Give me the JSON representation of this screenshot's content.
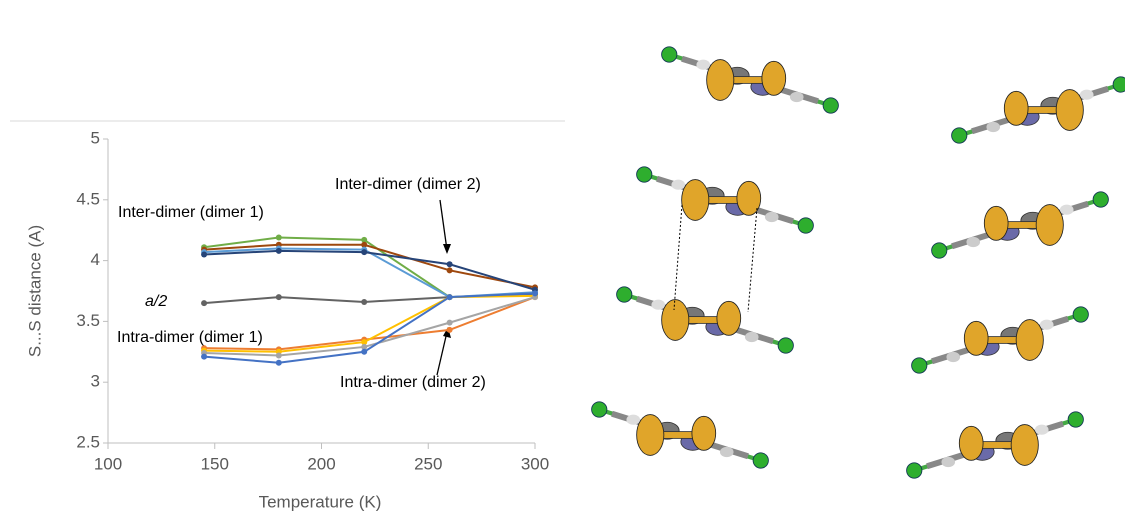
{
  "chart_data": {
    "type": "line",
    "x_label": "Temperature (K)",
    "y_label": "S...S distance (A)",
    "x": [
      145,
      180,
      220,
      260,
      300
    ],
    "series": [
      {
        "color": "#70ad47",
        "values": [
          4.11,
          4.19,
          4.17,
          3.7,
          3.73
        ]
      },
      {
        "color": "#9e480e",
        "values": [
          4.09,
          4.13,
          4.13,
          3.92,
          3.78
        ]
      },
      {
        "color": "#5b9bd5",
        "values": [
          4.07,
          4.1,
          4.09,
          3.7,
          3.74
        ]
      },
      {
        "color": "#264478",
        "values": [
          4.05,
          4.08,
          4.07,
          3.97,
          3.76
        ]
      },
      {
        "color": "#636363",
        "values": [
          3.65,
          3.7,
          3.66,
          3.7,
          3.72
        ]
      },
      {
        "color": "#ed7d31",
        "values": [
          3.28,
          3.27,
          3.35,
          3.43,
          3.7
        ]
      },
      {
        "color": "#ffc000",
        "values": [
          3.26,
          3.25,
          3.33,
          3.7,
          3.71
        ]
      },
      {
        "color": "#a5a5a5",
        "values": [
          3.24,
          3.22,
          3.29,
          3.49,
          3.7
        ]
      },
      {
        "color": "#4472c4",
        "values": [
          3.21,
          3.16,
          3.25,
          3.7,
          3.73
        ]
      }
    ],
    "annotations": [
      "Inter-dimer (dimer 1)",
      "Inter-dimer (dimer 2)",
      "a/2",
      "Intra-dimer (dimer 1)",
      "Intra-dimer (dimer 2)"
    ],
    "xlim": [
      100,
      300
    ],
    "xticks": [
      100,
      150,
      200,
      250,
      300
    ],
    "ylim": [
      2.5,
      5
    ],
    "yticks": [
      2.5,
      3,
      3.5,
      4,
      4.5,
      5
    ],
    "grid": false
  }
}
